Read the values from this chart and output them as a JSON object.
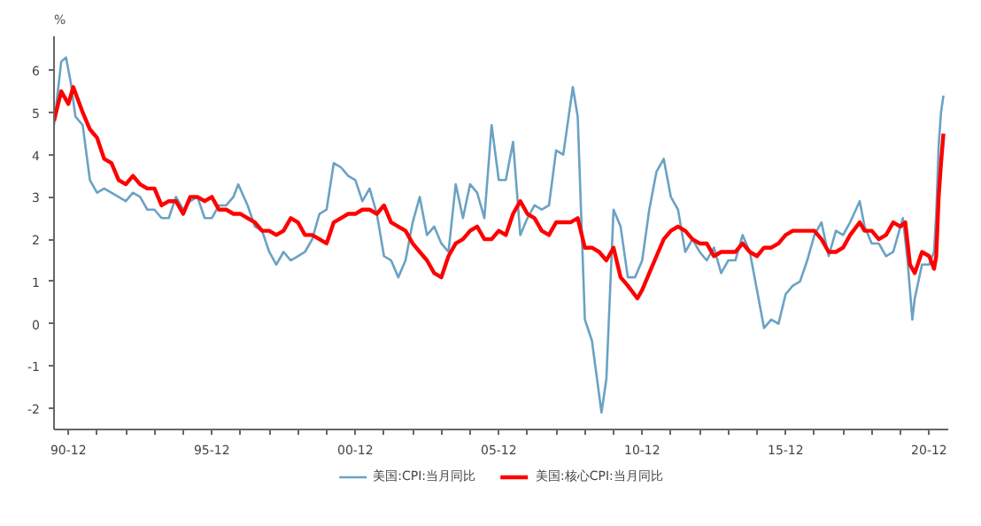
{
  "chart_data": {
    "type": "line",
    "ylabel": "%",
    "legend": "bottom",
    "grid": false,
    "marker": "none",
    "line_style": "solid",
    "xlim": [
      "1990-06",
      "2021-08"
    ],
    "xticks": [
      {
        "value": "1990-12",
        "label": "90-12"
      },
      {
        "value": "1991-12",
        "label": null
      },
      {
        "value": "1992-12",
        "label": null
      },
      {
        "value": "1993-12",
        "label": null
      },
      {
        "value": "1994-12",
        "label": null
      },
      {
        "value": "1995-12",
        "label": "95-12"
      },
      {
        "value": "1996-12",
        "label": null
      },
      {
        "value": "1997-12",
        "label": null
      },
      {
        "value": "1998-12",
        "label": null
      },
      {
        "value": "1999-12",
        "label": null
      },
      {
        "value": "2000-12",
        "label": "00-12"
      },
      {
        "value": "2001-12",
        "label": null
      },
      {
        "value": "2002-12",
        "label": null
      },
      {
        "value": "2003-12",
        "label": null
      },
      {
        "value": "2004-12",
        "label": null
      },
      {
        "value": "2005-12",
        "label": "05-12"
      },
      {
        "value": "2006-12",
        "label": null
      },
      {
        "value": "2007-12",
        "label": null
      },
      {
        "value": "2008-12",
        "label": null
      },
      {
        "value": "2009-12",
        "label": null
      },
      {
        "value": "2010-12",
        "label": "10-12"
      },
      {
        "value": "2011-12",
        "label": null
      },
      {
        "value": "2012-12",
        "label": null
      },
      {
        "value": "2013-12",
        "label": null
      },
      {
        "value": "2014-12",
        "label": null
      },
      {
        "value": "2015-12",
        "label": "15-12"
      },
      {
        "value": "2016-12",
        "label": null
      },
      {
        "value": "2017-12",
        "label": null
      },
      {
        "value": "2018-12",
        "label": null
      },
      {
        "value": "2019-12",
        "label": null
      },
      {
        "value": "2020-12",
        "label": "20-12"
      }
    ],
    "ylim": [
      -2.5,
      6.8
    ],
    "yticks": [
      -2,
      -1,
      0,
      1,
      2,
      3,
      4,
      5,
      6
    ],
    "series": [
      {
        "name": "美国:CPI:当月同比",
        "color": "#6aa2c4",
        "x": [
          "1990-06",
          "1990-09",
          "1990-11",
          "1991-01",
          "1991-03",
          "1991-06",
          "1991-09",
          "1991-12",
          "1992-03",
          "1992-06",
          "1992-09",
          "1992-12",
          "1993-03",
          "1993-06",
          "1993-09",
          "1993-12",
          "1994-03",
          "1994-06",
          "1994-09",
          "1994-12",
          "1995-03",
          "1995-06",
          "1995-09",
          "1995-12",
          "1996-03",
          "1996-06",
          "1996-09",
          "1996-11",
          "1997-03",
          "1997-06",
          "1997-09",
          "1997-12",
          "1998-03",
          "1998-06",
          "1998-09",
          "1998-12",
          "1999-03",
          "1999-06",
          "1999-09",
          "1999-12",
          "2000-03",
          "2000-06",
          "2000-09",
          "2000-12",
          "2001-03",
          "2001-06",
          "2001-09",
          "2001-12",
          "2002-03",
          "2002-06",
          "2002-09",
          "2002-12",
          "2003-03",
          "2003-06",
          "2003-09",
          "2003-12",
          "2004-03",
          "2004-06",
          "2004-09",
          "2004-12",
          "2005-03",
          "2005-06",
          "2005-09",
          "2005-12",
          "2006-03",
          "2006-06",
          "2006-09",
          "2006-12",
          "2007-03",
          "2007-06",
          "2007-09",
          "2007-12",
          "2008-03",
          "2008-07",
          "2008-09",
          "2008-12",
          "2009-03",
          "2009-07",
          "2009-09",
          "2009-12",
          "2010-03",
          "2010-06",
          "2010-09",
          "2010-12",
          "2011-03",
          "2011-06",
          "2011-09",
          "2011-12",
          "2012-03",
          "2012-06",
          "2012-09",
          "2012-12",
          "2013-03",
          "2013-06",
          "2013-09",
          "2013-12",
          "2014-03",
          "2014-06",
          "2014-09",
          "2014-12",
          "2015-03",
          "2015-06",
          "2015-09",
          "2015-12",
          "2016-03",
          "2016-06",
          "2016-09",
          "2016-12",
          "2017-03",
          "2017-06",
          "2017-09",
          "2017-12",
          "2018-03",
          "2018-07",
          "2018-09",
          "2018-12",
          "2019-03",
          "2019-06",
          "2019-09",
          "2019-12",
          "2020-01",
          "2020-03",
          "2020-05",
          "2020-06",
          "2020-09",
          "2020-12",
          "2021-02",
          "2021-03",
          "2021-04",
          "2021-05",
          "2021-06"
        ],
        "values": [
          4.7,
          6.2,
          6.3,
          5.7,
          4.9,
          4.7,
          3.4,
          3.1,
          3.2,
          3.1,
          3.0,
          2.9,
          3.1,
          3.0,
          2.7,
          2.7,
          2.5,
          2.5,
          3.0,
          2.7,
          2.9,
          3.0,
          2.5,
          2.5,
          2.8,
          2.8,
          3.0,
          3.3,
          2.8,
          2.3,
          2.2,
          1.7,
          1.4,
          1.7,
          1.5,
          1.6,
          1.7,
          2.0,
          2.6,
          2.7,
          3.8,
          3.7,
          3.5,
          3.4,
          2.9,
          3.2,
          2.6,
          1.6,
          1.5,
          1.1,
          1.5,
          2.4,
          3.0,
          2.1,
          2.3,
          1.9,
          1.7,
          3.3,
          2.5,
          3.3,
          3.1,
          2.5,
          4.7,
          3.4,
          3.4,
          4.3,
          2.1,
          2.5,
          2.8,
          2.7,
          2.8,
          4.1,
          4.0,
          5.6,
          4.9,
          0.1,
          -0.4,
          -2.1,
          -1.3,
          2.7,
          2.3,
          1.1,
          1.1,
          1.5,
          2.7,
          3.6,
          3.9,
          3.0,
          2.7,
          1.7,
          2.0,
          1.7,
          1.5,
          1.8,
          1.2,
          1.5,
          1.5,
          2.1,
          1.7,
          0.8,
          -0.1,
          0.1,
          0.0,
          0.7,
          0.9,
          1.0,
          1.5,
          2.1,
          2.4,
          1.6,
          2.2,
          2.1,
          2.4,
          2.9,
          2.3,
          1.9,
          1.9,
          1.6,
          1.7,
          2.3,
          2.5,
          1.5,
          0.1,
          0.6,
          1.4,
          1.4,
          1.7,
          2.6,
          4.2,
          5.0,
          5.4
        ]
      },
      {
        "name": "美国:核心CPI:当月同比",
        "color": "#ff0000",
        "x": [
          "1990-06",
          "1990-09",
          "1990-12",
          "1991-02",
          "1991-06",
          "1991-09",
          "1991-12",
          "1992-03",
          "1992-06",
          "1992-09",
          "1992-12",
          "1993-03",
          "1993-06",
          "1993-09",
          "1993-12",
          "1994-03",
          "1994-06",
          "1994-09",
          "1994-12",
          "1995-03",
          "1995-06",
          "1995-09",
          "1995-12",
          "1996-03",
          "1996-06",
          "1996-09",
          "1996-12",
          "1997-03",
          "1997-06",
          "1997-09",
          "1997-12",
          "1998-03",
          "1998-06",
          "1998-09",
          "1998-12",
          "1999-03",
          "1999-06",
          "1999-09",
          "1999-12",
          "2000-03",
          "2000-06",
          "2000-09",
          "2000-12",
          "2001-03",
          "2001-06",
          "2001-09",
          "2001-12",
          "2002-03",
          "2002-06",
          "2002-09",
          "2002-12",
          "2003-03",
          "2003-06",
          "2003-09",
          "2003-12",
          "2004-03",
          "2004-06",
          "2004-09",
          "2004-12",
          "2005-03",
          "2005-06",
          "2005-09",
          "2005-12",
          "2006-03",
          "2006-06",
          "2006-09",
          "2006-12",
          "2007-03",
          "2007-06",
          "2007-09",
          "2007-12",
          "2008-03",
          "2008-06",
          "2008-09",
          "2008-12",
          "2009-03",
          "2009-06",
          "2009-09",
          "2009-12",
          "2010-03",
          "2010-06",
          "2010-10",
          "2010-12",
          "2011-03",
          "2011-06",
          "2011-09",
          "2011-12",
          "2012-03",
          "2012-06",
          "2012-09",
          "2012-12",
          "2013-03",
          "2013-06",
          "2013-09",
          "2013-12",
          "2014-03",
          "2014-06",
          "2014-09",
          "2014-12",
          "2015-03",
          "2015-06",
          "2015-09",
          "2015-12",
          "2016-03",
          "2016-06",
          "2016-09",
          "2016-12",
          "2017-03",
          "2017-06",
          "2017-09",
          "2017-12",
          "2018-03",
          "2018-07",
          "2018-09",
          "2018-12",
          "2019-03",
          "2019-06",
          "2019-09",
          "2019-12",
          "2020-02",
          "2020-04",
          "2020-06",
          "2020-09",
          "2020-12",
          "2021-02",
          "2021-03",
          "2021-04",
          "2021-05",
          "2021-06"
        ],
        "values": [
          4.8,
          5.5,
          5.2,
          5.6,
          5.0,
          4.6,
          4.4,
          3.9,
          3.8,
          3.4,
          3.3,
          3.5,
          3.3,
          3.2,
          3.2,
          2.8,
          2.9,
          2.9,
          2.6,
          3.0,
          3.0,
          2.9,
          3.0,
          2.7,
          2.7,
          2.6,
          2.6,
          2.5,
          2.4,
          2.2,
          2.2,
          2.1,
          2.2,
          2.5,
          2.4,
          2.1,
          2.1,
          2.0,
          1.9,
          2.4,
          2.5,
          2.6,
          2.6,
          2.7,
          2.7,
          2.6,
          2.8,
          2.4,
          2.3,
          2.2,
          1.9,
          1.7,
          1.5,
          1.2,
          1.1,
          1.6,
          1.9,
          2.0,
          2.2,
          2.3,
          2.0,
          2.0,
          2.2,
          2.1,
          2.6,
          2.9,
          2.6,
          2.5,
          2.2,
          2.1,
          2.4,
          2.4,
          2.4,
          2.5,
          1.8,
          1.8,
          1.7,
          1.5,
          1.8,
          1.1,
          0.9,
          0.6,
          0.8,
          1.2,
          1.6,
          2.0,
          2.2,
          2.3,
          2.2,
          2.0,
          1.9,
          1.9,
          1.6,
          1.7,
          1.7,
          1.7,
          1.9,
          1.7,
          1.6,
          1.8,
          1.8,
          1.9,
          2.1,
          2.2,
          2.2,
          2.2,
          2.2,
          2.0,
          1.7,
          1.7,
          1.8,
          2.1,
          2.4,
          2.2,
          2.2,
          2.0,
          2.1,
          2.4,
          2.3,
          2.4,
          1.4,
          1.2,
          1.7,
          1.6,
          1.3,
          1.6,
          3.0,
          3.8,
          4.5
        ]
      }
    ]
  }
}
